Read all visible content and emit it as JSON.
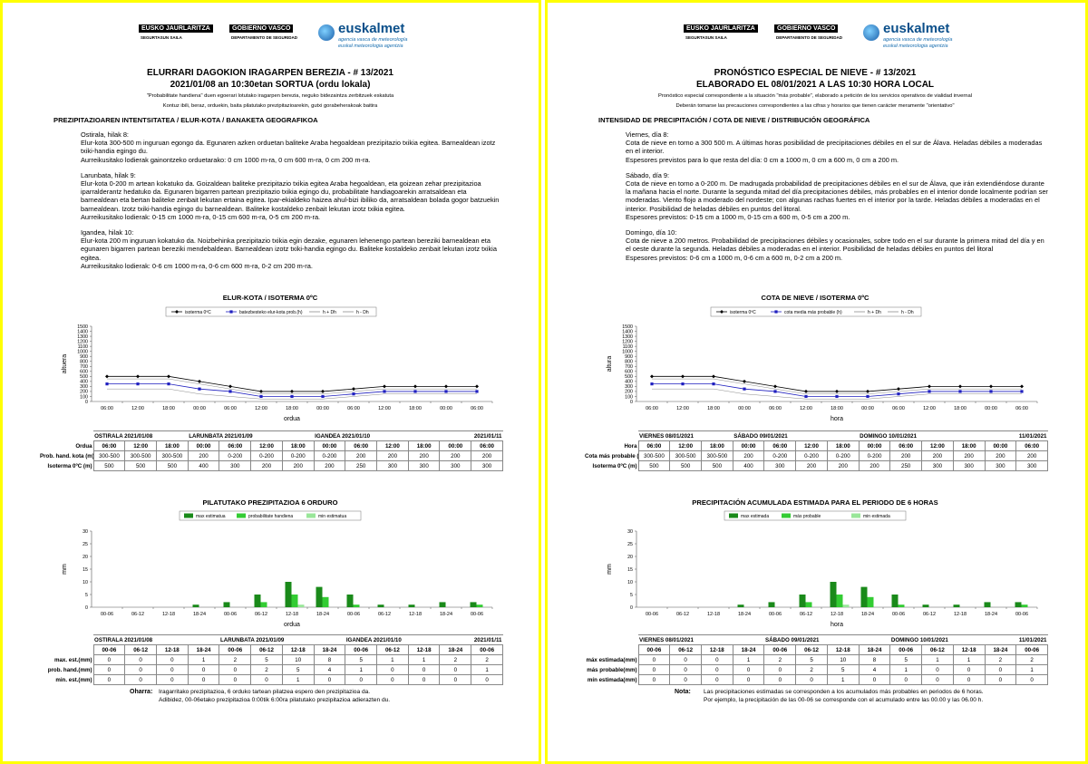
{
  "header": {
    "gov_left": "EUSKO JAURLARITZA",
    "gov_right": "GOBIERNO VASCO",
    "dept_eu": "SEGURTASUN SAILA",
    "dept_es": "DEPARTAMENTO DE SEGURIDAD",
    "brand": "euskalmet",
    "brand_sub1": "agencia vasca de meteorología",
    "brand_sub2": "euskal meteorologia agentzia"
  },
  "pages": [
    {
      "title": "ELURRARI DAGOKION IRAGARPEN BEREZIA - # 13/2021",
      "subtitle": "2021/01/08 an 10:30etan SORTUA (ordu lokala)",
      "intro": "\"Probabilitate handiena\" duen egoerari lotutako iragarpen berezia, neguko bidezaintza zerbitzuek eskatuta",
      "caution": "Kontuz ibili, beraz, orduekin, baita pilatutako prezipitazioarekin, gutxi gorabeherakoak baitira",
      "section": "PREZIPITAZIOAREN INTENTSITATEA / ELUR-KOTA / BANAKETA GEOGRAFIKOA",
      "days": [
        {
          "heading": "Ostirala, hilak 8:",
          "text": "Elur-kota 300-500 m inguruan egongo da. Egunaren azken orduetan baliteke Araba hegoaldean prezipitazio txikia egitea. Barnealdean izotz txiki-handia egingo du.",
          "thickness": "Aurreikusitako lodierak gainontzeko orduetarako: 0 cm 1000 m-ra, 0 cm 600 m-ra, 0 cm 200 m-ra."
        },
        {
          "heading": "Larunbata, hilak 9:",
          "text": "Elur-kota 0-200 m artean kokatuko da. Goizaldean baliteke prezipitazio txikia egitea Araba hegoaldean, eta goizean zehar prezipitazioa iparralderantz hedatuko da. Egunaren bigarren partean prezipitazio txikia egingo du, probabilitate handiagoarekin arratsaldean eta barnealdean eta bertan baliteke zenbait lekutan ertaina egitea. Ipar-ekialdeko haizea ahul-bizi ibiliko da, arratsaldean bolada gogor batzuekin barnealdean. Izotz txiki-handia egingo du barnealdean. Baliteke kostaldeko zenbait lekutan izotz txikia egitea.",
          "thickness": "Aurreikusitako lodierak: 0-15 cm 1000 m-ra, 0-15 cm 600 m-ra, 0-5 cm 200 m-ra."
        },
        {
          "heading": "Igandea, hilak 10:",
          "text": "Elur-kota 200 m inguruan kokatuko da. Noizbehinka prezipitazio txikia egin dezake, egunaren lehenengo partean bereziki barnealdean eta egunaren bigarren partean bereziki mendebaldean. Barnealdean izotz txiki-handia egingo du. Baliteke kostaldeko zenbait lekutan izotz txikia egitea.",
          "thickness": "Aurreikusitako lodierak: 0-6 cm 1000 m-ra, 0-6 cm 600 m-ra, 0-2 cm 200 m-ra."
        }
      ],
      "snow_chart": {
        "type": "line",
        "title": "ELUR-KOTA / ISOTERMA 0ºC",
        "y_label": "altuera",
        "x_label": "ordua",
        "categories": [
          "06:00",
          "12:00",
          "18:00",
          "00:00",
          "06:00",
          "12:00",
          "18:00",
          "00:00",
          "06:00",
          "12:00",
          "18:00",
          "00:00",
          "06:00"
        ],
        "ylim": [
          0,
          1500
        ],
        "yticks": [
          0,
          100,
          200,
          300,
          400,
          500,
          600,
          700,
          800,
          900,
          1000,
          1100,
          1200,
          1300,
          1400,
          1500
        ],
        "series": [
          {
            "name": "isoterma 0ºC",
            "color": "#000000",
            "marker": "diamond",
            "values": [
              500,
              500,
              500,
              400,
              300,
              200,
              200,
              200,
              250,
              300,
              300,
              300,
              300
            ]
          },
          {
            "name": "batezbesteko elur-kota prob.(h)",
            "color": "#1f1fbf",
            "marker": "square",
            "values": [
              350,
              350,
              350,
              250,
              200,
              100,
              100,
              100,
              150,
              200,
              200,
              200,
              200
            ]
          },
          {
            "name": "h + Dh",
            "color": "#8c8c8c",
            "marker": "none",
            "values": [
              450,
              450,
              450,
              350,
              250,
              150,
              150,
              150,
              200,
              250,
              250,
              250,
              250
            ]
          },
          {
            "name": "h - Dh",
            "color": "#8c8c8c",
            "marker": "none",
            "values": [
              250,
              250,
              250,
              150,
              100,
              50,
              50,
              50,
              100,
              150,
              150,
              150,
              150
            ]
          }
        ]
      },
      "snow_table": {
        "days": [
          "OSTIRALA 2021/01/08",
          "LARUNBATA 2021/01/09",
          "IGANDEA 2021/01/10",
          "2021/01/11"
        ],
        "time_label": "Ordua",
        "level_label": "Prob. hand. kota (m)",
        "level_values": [
          "300-500",
          "300-500",
          "300-500",
          "200",
          "0-200",
          "0-200",
          "0-200",
          "0-200",
          "200",
          "200",
          "200",
          "200",
          "200"
        ],
        "iso_label": "Isoterma 0ºC (m)"
      },
      "precip_chart": {
        "type": "bar",
        "title": "PILATUTAKO PREZIPITAZIOA 6 ORDURO",
        "y_label": "mm",
        "x_label": "ordua",
        "categories": [
          "00-06",
          "06-12",
          "12-18",
          "18-24",
          "00-06",
          "06-12",
          "12-18",
          "18-24",
          "00-06",
          "06-12",
          "12-18",
          "18-24",
          "00-06"
        ],
        "ylim": [
          0,
          30
        ],
        "yticks": [
          0,
          5,
          10,
          15,
          20,
          25,
          30
        ],
        "series": [
          {
            "name": "max estimatua",
            "color": "#1a8a1a",
            "values": [
              0,
              0,
              0,
              1,
              2,
              5,
              10,
              8,
              5,
              1,
              1,
              2,
              2
            ]
          },
          {
            "name": "probabilitate handiena",
            "color": "#33cc33",
            "values": [
              0,
              0,
              0,
              0,
              0,
              2,
              5,
              4,
              1,
              0,
              0,
              0,
              1
            ]
          },
          {
            "name": "min estimatua",
            "color": "#99e699",
            "values": [
              0,
              0,
              0,
              0,
              0,
              0,
              1,
              0,
              0,
              0,
              0,
              0,
              0
            ]
          }
        ]
      },
      "precip_table": {
        "days": [
          "OSTIRALA 2021/01/08",
          "LARUNBATA 2021/01/09",
          "IGANDEA 2021/01/10",
          "2021/01/11"
        ],
        "row_labels": [
          "max. est.(mm)",
          "prob. hand.(mm)",
          "min. est.(mm)"
        ]
      },
      "note": {
        "label": "Oharra:",
        "lines": [
          "Iragarritako prezipitazioa, 6 orduko tartean pilatzea espero den prezipitazioa da.",
          "Adibidez, 00-06etako prezipitazioa 0:00tik 6:00ra pilatutako prezipitazioa adierazten du."
        ]
      }
    },
    {
      "title": "PRONÓSTICO ESPECIAL DE NIEVE - # 13/2021",
      "subtitle": "ELABORADO EL 08/01/2021 A LAS 10:30 HORA LOCAL",
      "intro": "Pronóstico especial correspondiente a la situación \"más probable\", elaborado a petición de los servicios operativos de vialidad invernal",
      "caution": "Deberán tomarse las precauciones correspondientes a las cifras y horarios que tienen carácter meramente \"orientativo\"",
      "section": "INTENSIDAD DE PRECIPITACIÓN / COTA DE NIEVE / DISTRIBUCIÓN GEOGRÁFICA",
      "days": [
        {
          "heading": "Viernes, día 8:",
          "text": "Cota de nieve en torno a 300 500 m. A últimas horas posibilidad de precipitaciones débiles en el sur de Álava. Heladas débiles a moderadas en el interior.",
          "thickness": "Espesores previstos para lo que resta del día: 0 cm a 1000 m, 0 cm a 600 m, 0 cm a 200 m."
        },
        {
          "heading": "Sábado, día 9:",
          "text": "Cota de nieve en torno a 0-200 m. De madrugada probabilidad de precipitaciones débiles en el sur de Álava, que irán extendiéndose durante la mañana hacia el norte. Durante la segunda mitad del día precipitaciones débiles, más probables en el interior donde localmente podrían ser moderadas. Viento flojo a moderado del nordeste; con algunas rachas fuertes en el interior por la tarde. Heladas débiles a moderadas en el interior. Posibilidad de heladas débiles en puntos del litoral.",
          "thickness": "Espesores previstos: 0-15 cm a 1000 m, 0-15 cm a 600 m, 0-5 cm a 200 m."
        },
        {
          "heading": "Domingo, día 10:",
          "text": "Cota de nieve a 200 metros. Probabilidad de precipitaciones débiles y ocasionales, sobre todo en el sur durante la primera mitad del día y en el oeste durante la segunda. Heladas débiles a moderadas en el interior. Posibilidad de heladas débiles en puntos del litoral",
          "thickness": "Espesores previstos: 0-6 cm a 1000 m, 0-6 cm a 600 m, 0-2 cm a 200 m."
        }
      ],
      "snow_chart": {
        "type": "line",
        "title": "COTA DE NIEVE / ISOTERMA 0ºC",
        "y_label": "altura",
        "x_label": "hora",
        "categories": [
          "06:00",
          "12:00",
          "18:00",
          "00:00",
          "06:00",
          "12:00",
          "18:00",
          "00:00",
          "06:00",
          "12:00",
          "18:00",
          "00:00",
          "06:00"
        ],
        "ylim": [
          0,
          1500
        ],
        "yticks": [
          0,
          100,
          200,
          300,
          400,
          500,
          600,
          700,
          800,
          900,
          1000,
          1100,
          1200,
          1300,
          1400,
          1500
        ],
        "series": [
          {
            "name": "isoterma 0ºC",
            "color": "#000000",
            "marker": "diamond",
            "values": [
              500,
              500,
              500,
              400,
              300,
              200,
              200,
              200,
              250,
              300,
              300,
              300,
              300
            ]
          },
          {
            "name": "cota media más probable (h)",
            "color": "#1f1fbf",
            "marker": "square",
            "values": [
              350,
              350,
              350,
              250,
              200,
              100,
              100,
              100,
              150,
              200,
              200,
              200,
              200
            ]
          },
          {
            "name": "h + Dh",
            "color": "#8c8c8c",
            "marker": "none",
            "values": [
              450,
              450,
              450,
              350,
              250,
              150,
              150,
              150,
              200,
              250,
              250,
              250,
              250
            ]
          },
          {
            "name": "h - Dh",
            "color": "#8c8c8c",
            "marker": "none",
            "values": [
              250,
              250,
              250,
              150,
              100,
              50,
              50,
              50,
              100,
              150,
              150,
              150,
              150
            ]
          }
        ]
      },
      "snow_table": {
        "days": [
          "VIERNES 08/01/2021",
          "SÁBADO 09/01/2021",
          "DOMINGO 10/01/2021",
          "11/01/2021"
        ],
        "time_label": "Hora",
        "level_label": "Cota más probable (m)",
        "level_values": [
          "300-500",
          "300-500",
          "300-500",
          "200",
          "0-200",
          "0-200",
          "0-200",
          "0-200",
          "200",
          "200",
          "200",
          "200",
          "200"
        ],
        "iso_label": "Isoterma 0ºC (m)"
      },
      "precip_chart": {
        "type": "bar",
        "title": "PRECIPITACIÓN ACUMULADA ESTIMADA PARA EL PERIODO DE 6 HORAS",
        "y_label": "mm",
        "x_label": "hora",
        "categories": [
          "00-06",
          "06-12",
          "12-18",
          "18-24",
          "00-06",
          "06-12",
          "12-18",
          "18-24",
          "00-06",
          "06-12",
          "12-18",
          "18-24",
          "00-06"
        ],
        "ylim": [
          0,
          30
        ],
        "yticks": [
          0,
          5,
          10,
          15,
          20,
          25,
          30
        ],
        "series": [
          {
            "name": "max estimada",
            "color": "#1a8a1a",
            "values": [
              0,
              0,
              0,
              1,
              2,
              5,
              10,
              8,
              5,
              1,
              1,
              2,
              2
            ]
          },
          {
            "name": "más probable",
            "color": "#33cc33",
            "values": [
              0,
              0,
              0,
              0,
              0,
              2,
              5,
              4,
              1,
              0,
              0,
              0,
              1
            ]
          },
          {
            "name": "min estimada",
            "color": "#99e699",
            "values": [
              0,
              0,
              0,
              0,
              0,
              0,
              1,
              0,
              0,
              0,
              0,
              0,
              0
            ]
          }
        ]
      },
      "precip_table": {
        "days": [
          "VIERNES 08/01/2021",
          "SÁBADO 09/01/2021",
          "DOMINGO 10/01/2021",
          "11/01/2021"
        ],
        "row_labels": [
          "máx estimada(mm)",
          "más probable(mm)",
          "mín estimada(mm)"
        ]
      },
      "note": {
        "label": "Nota:",
        "lines": [
          "Las precipitaciones estimadas se corresponden a los acumulados más probables en periodos de 6 horas.",
          "Por ejemplo, la precipitación de las 00-06 se corresponde con el acumulado entre las 00.00 y las 06.00 h."
        ]
      }
    }
  ]
}
